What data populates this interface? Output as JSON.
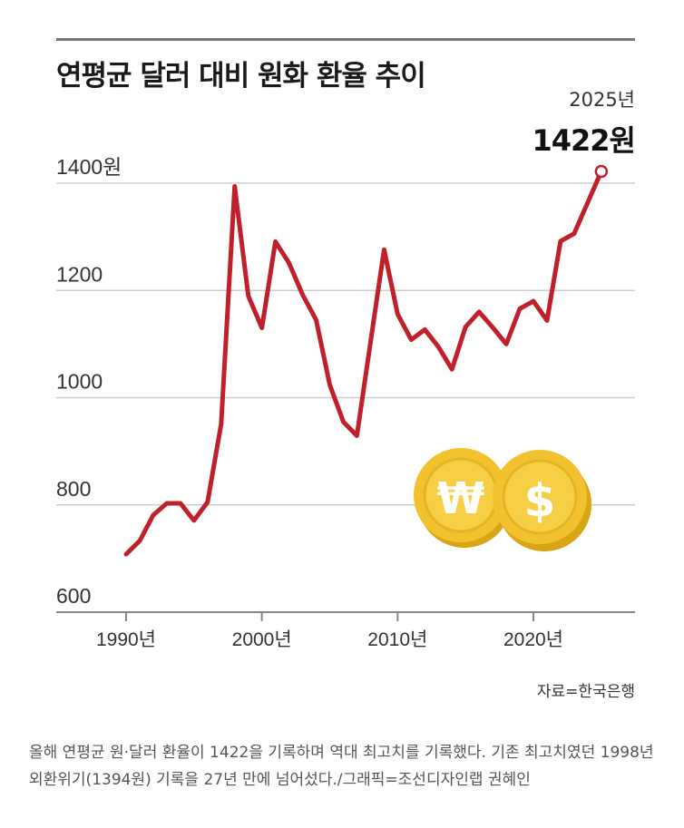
{
  "title": "연평균 달러 대비 원화 환율 추이",
  "highlight": {
    "year_label": "2025년",
    "value_label": "1422원"
  },
  "source": "자료=한국은행",
  "caption": "올해 연평균 원·달러 환율이 1422을 기록하며 역대 최고치를 기록했다. 기존 최고치였던 1998년 외환위기(1394원) 기록을 27년 만에 넘어섰다./그래픽=조선디자인랩 권혜인",
  "colors": {
    "line": "#c0202a",
    "grid": "#cfcfcf",
    "axis": "#888888",
    "coin": "#f2c22e"
  },
  "icons": [
    "won-coin-icon",
    "dollar-coin-icon"
  ],
  "chart_data": {
    "type": "line",
    "ylim": [
      600,
      1450
    ],
    "y_ticks": [
      600,
      800,
      1000,
      1200,
      1400
    ],
    "y_tick_labels": [
      "600",
      "800",
      "1000",
      "1200",
      "1400원"
    ],
    "xlim": [
      1985,
      2026
    ],
    "x_ticks": [
      1990,
      2000,
      2010,
      2020
    ],
    "x_tick_labels": [
      "1990년",
      "2000년",
      "2010년",
      "2020년"
    ],
    "x": [
      1990,
      1991,
      1992,
      1993,
      1994,
      1995,
      1996,
      1997,
      1998,
      1999,
      2000,
      2001,
      2002,
      2003,
      2004,
      2005,
      2006,
      2007,
      2008,
      2009,
      2010,
      2011,
      2012,
      2013,
      2014,
      2015,
      2016,
      2017,
      2018,
      2019,
      2020,
      2021,
      2022,
      2023,
      2024,
      2025
    ],
    "values": [
      708,
      733,
      781,
      803,
      803,
      771,
      805,
      951,
      1394,
      1190,
      1130,
      1291,
      1251,
      1192,
      1145,
      1024,
      955,
      929,
      1103,
      1276,
      1156,
      1108,
      1127,
      1095,
      1053,
      1132,
      1160,
      1131,
      1100,
      1166,
      1180,
      1144,
      1292,
      1306,
      1364,
      1422
    ]
  }
}
